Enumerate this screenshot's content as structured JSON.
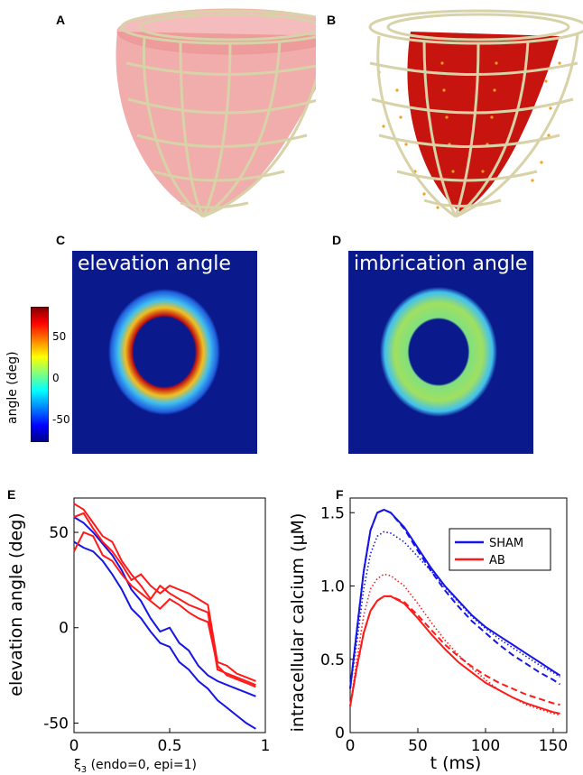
{
  "panel_labels": {
    "A": "A",
    "B": "B",
    "C": "C",
    "D": "D",
    "E": "E",
    "F": "F"
  },
  "map_c": {
    "title": "elevation angle"
  },
  "map_d": {
    "title": "imbrication angle"
  },
  "colorbar": {
    "label": "angle  (deg)",
    "ticks": [
      "50",
      "0",
      "-50"
    ],
    "range": [
      -90,
      90
    ]
  },
  "colors": {
    "map_bg": "#0a1a8c",
    "sham": "#1515e6",
    "ab": "#ff1a1a",
    "mesh": "#c9c29a",
    "ventricle_a": "#e98a8a",
    "ventricle_b": "#c8140f",
    "fibres": "#f0a020"
  },
  "chart_data": [
    {
      "type": "line",
      "panel": "E",
      "xlabel_symbol": "ξ",
      "xlabel_sub": "3",
      "xlabel_rest": "  (endo=0, epi=1)",
      "ylabel": "elevation angle  (deg)",
      "xlim": [
        0,
        1
      ],
      "ylim": [
        -55,
        68
      ],
      "xticks": [
        "0",
        "0.5",
        "1"
      ],
      "yticks": [
        "50",
        "0",
        "-50"
      ],
      "x": [
        0,
        0.05,
        0.1,
        0.15,
        0.2,
        0.25,
        0.3,
        0.35,
        0.4,
        0.45,
        0.5,
        0.55,
        0.6,
        0.65,
        0.7,
        0.75,
        0.8,
        0.85,
        0.9,
        0.95
      ],
      "series": [
        {
          "name": "SHAM",
          "color": "#1515e6",
          "values": [
            58,
            55,
            50,
            44,
            38,
            30,
            20,
            14,
            5,
            -2,
            0,
            -8,
            -12,
            -20,
            -25,
            -28,
            -30,
            -32,
            -34,
            -36
          ]
        },
        {
          "name": "SHAM",
          "color": "#1515e6",
          "values": [
            45,
            42,
            40,
            35,
            28,
            20,
            10,
            5,
            -2,
            -8,
            -10,
            -18,
            -22,
            -28,
            -32,
            -38,
            -42,
            -46,
            -50,
            -53
          ]
        },
        {
          "name": "AB",
          "color": "#ff1a1a",
          "values": [
            65,
            62,
            55,
            48,
            45,
            35,
            28,
            22,
            15,
            22,
            18,
            15,
            12,
            10,
            8,
            -22,
            -24,
            -26,
            -28,
            -30
          ]
        },
        {
          "name": "AB",
          "color": "#ff1a1a",
          "values": [
            58,
            60,
            52,
            45,
            40,
            33,
            25,
            28,
            22,
            18,
            22,
            20,
            18,
            15,
            12,
            -18,
            -20,
            -24,
            -26,
            -28
          ]
        },
        {
          "name": "AB",
          "color": "#ff1a1a",
          "values": [
            40,
            50,
            48,
            38,
            35,
            28,
            22,
            18,
            14,
            10,
            15,
            12,
            8,
            5,
            3,
            -20,
            -25,
            -27,
            -29,
            -31
          ]
        }
      ]
    },
    {
      "type": "line",
      "panel": "F",
      "xlabel": "t (ms)",
      "ylabel": "intracellular calcium (μM)",
      "xlim": [
        0,
        160
      ],
      "ylim": [
        0,
        1.6
      ],
      "xticks": [
        "0",
        "50",
        "100",
        "150"
      ],
      "yticks": [
        "0",
        "0.5",
        "1.0",
        "1.5"
      ],
      "legend": {
        "position": "top-right",
        "entries": [
          "SHAM",
          "AB"
        ]
      },
      "series": [
        {
          "name": "SHAM",
          "style": "solid",
          "color": "#1515e6",
          "x": [
            0,
            5,
            10,
            15,
            20,
            25,
            30,
            40,
            50,
            60,
            70,
            80,
            90,
            100,
            110,
            120,
            130,
            140,
            150,
            155
          ],
          "values": [
            0.3,
            0.7,
            1.1,
            1.38,
            1.5,
            1.52,
            1.5,
            1.4,
            1.26,
            1.12,
            1.0,
            0.9,
            0.8,
            0.72,
            0.66,
            0.6,
            0.54,
            0.48,
            0.42,
            0.39
          ]
        },
        {
          "name": "SHAM",
          "style": "dotted",
          "color": "#1515e6",
          "x": [
            0,
            5,
            10,
            15,
            20,
            25,
            30,
            40,
            50,
            60,
            70,
            80,
            90,
            100,
            110,
            120,
            130,
            140,
            150,
            155
          ],
          "values": [
            0.3,
            0.62,
            0.98,
            1.22,
            1.34,
            1.37,
            1.36,
            1.3,
            1.2,
            1.1,
            0.99,
            0.89,
            0.79,
            0.71,
            0.64,
            0.58,
            0.52,
            0.46,
            0.41,
            0.38
          ]
        },
        {
          "name": "SHAM",
          "style": "dashed",
          "color": "#1515e6",
          "x": [
            0,
            5,
            10,
            15,
            20,
            25,
            30,
            40,
            50,
            60,
            70,
            80,
            90,
            100,
            110,
            120,
            130,
            140,
            150,
            155
          ],
          "values": [
            0.3,
            0.7,
            1.1,
            1.38,
            1.5,
            1.52,
            1.5,
            1.39,
            1.24,
            1.1,
            0.97,
            0.86,
            0.76,
            0.68,
            0.6,
            0.53,
            0.47,
            0.41,
            0.36,
            0.33
          ]
        },
        {
          "name": "AB",
          "style": "solid",
          "color": "#ff1a1a",
          "x": [
            0,
            5,
            10,
            15,
            20,
            25,
            30,
            40,
            50,
            60,
            70,
            80,
            90,
            100,
            110,
            120,
            130,
            140,
            150,
            155
          ],
          "values": [
            0.18,
            0.45,
            0.68,
            0.83,
            0.9,
            0.93,
            0.93,
            0.88,
            0.78,
            0.67,
            0.57,
            0.48,
            0.41,
            0.34,
            0.29,
            0.24,
            0.2,
            0.17,
            0.14,
            0.13
          ]
        },
        {
          "name": "AB",
          "style": "dotted",
          "color": "#ff1a1a",
          "x": [
            0,
            5,
            10,
            15,
            20,
            25,
            30,
            40,
            50,
            60,
            70,
            80,
            90,
            100,
            110,
            120,
            130,
            140,
            150,
            155
          ],
          "values": [
            0.18,
            0.5,
            0.8,
            0.98,
            1.05,
            1.08,
            1.07,
            1.0,
            0.88,
            0.75,
            0.63,
            0.53,
            0.44,
            0.36,
            0.29,
            0.24,
            0.19,
            0.16,
            0.13,
            0.12
          ]
        },
        {
          "name": "AB",
          "style": "dashed",
          "color": "#ff1a1a",
          "x": [
            0,
            5,
            10,
            15,
            20,
            25,
            30,
            40,
            50,
            60,
            70,
            80,
            90,
            100,
            110,
            120,
            130,
            140,
            150,
            155
          ],
          "values": [
            0.18,
            0.45,
            0.68,
            0.83,
            0.9,
            0.93,
            0.93,
            0.89,
            0.8,
            0.7,
            0.6,
            0.52,
            0.45,
            0.39,
            0.34,
            0.3,
            0.26,
            0.23,
            0.2,
            0.19
          ]
        }
      ]
    }
  ]
}
